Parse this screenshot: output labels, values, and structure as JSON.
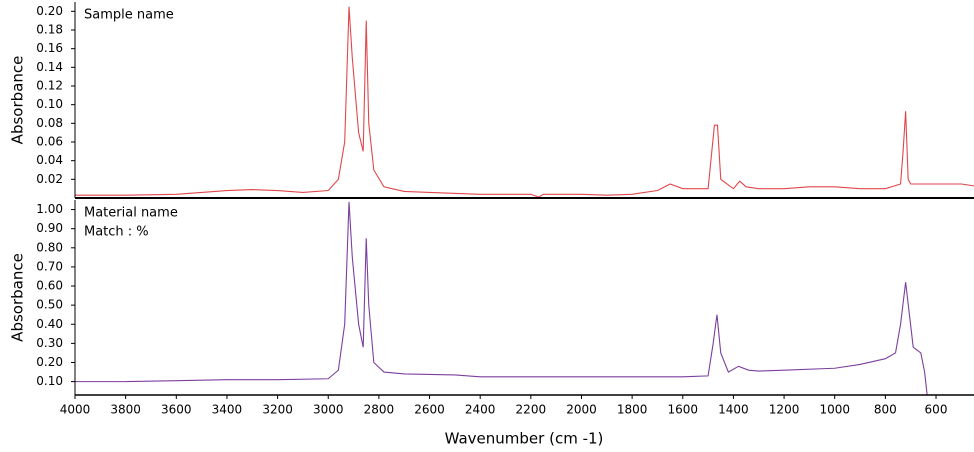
{
  "chart_data": [
    {
      "type": "line",
      "ylabel": "Absorbance",
      "annotations": [
        "Sample name"
      ],
      "color": "#e0474c",
      "xlim": [
        4000,
        450
      ],
      "ylim": [
        0,
        0.21
      ],
      "yticks": [
        0.02,
        0.04,
        0.06,
        0.08,
        {
          "value": 0.1,
          "label": "0.10"
        },
        0.12,
        0.14,
        0.16,
        0.18,
        {
          "value": 0.2,
          "label": "0.20"
        }
      ],
      "x": [
        4000,
        3800,
        3600,
        3400,
        3300,
        3200,
        3100,
        3000,
        2960,
        2935,
        2918,
        2905,
        2880,
        2862,
        2850,
        2840,
        2820,
        2780,
        2700,
        2600,
        2400,
        2200,
        2170,
        2150,
        2000,
        1900,
        1800,
        1700,
        1650,
        1600,
        1500,
        1475,
        1463,
        1450,
        1400,
        1375,
        1350,
        1300,
        1200,
        1100,
        1000,
        900,
        800,
        740,
        730,
        720,
        710,
        700,
        600,
        500,
        450
      ],
      "values": [
        0.003,
        0.003,
        0.004,
        0.008,
        0.009,
        0.008,
        0.006,
        0.008,
        0.02,
        0.06,
        0.205,
        0.15,
        0.07,
        0.05,
        0.19,
        0.08,
        0.03,
        0.012,
        0.007,
        0.006,
        0.004,
        0.004,
        0.001,
        0.004,
        0.004,
        0.003,
        0.004,
        0.008,
        0.015,
        0.01,
        0.01,
        0.078,
        0.078,
        0.02,
        0.01,
        0.018,
        0.012,
        0.01,
        0.01,
        0.012,
        0.012,
        0.01,
        0.01,
        0.015,
        0.05,
        0.093,
        0.02,
        0.015,
        0.015,
        0.015,
        0.013
      ]
    },
    {
      "type": "line",
      "ylabel": "Absorbance",
      "xlabel": "Wavenumber (cm -1)",
      "annotations": [
        "Material name",
        "Match : %"
      ],
      "color": "#7b3f9e",
      "xlim": [
        4000,
        450
      ],
      "ylim": [
        0.03,
        1.05
      ],
      "xticks": [
        4000,
        3800,
        3600,
        3400,
        3200,
        3000,
        2800,
        2600,
        2400,
        2200,
        2000,
        1800,
        1600,
        1400,
        1200,
        1000,
        800,
        600
      ],
      "yticks": [
        {
          "value": 0.1,
          "label": "0.10"
        },
        {
          "value": 0.2,
          "label": "0.20"
        },
        {
          "value": 0.3,
          "label": "0.30"
        },
        {
          "value": 0.4,
          "label": "0.40"
        },
        {
          "value": 0.5,
          "label": "0.50"
        },
        {
          "value": 0.6,
          "label": "0.60"
        },
        {
          "value": 0.7,
          "label": "0.70"
        },
        {
          "value": 0.8,
          "label": "0.80"
        },
        {
          "value": 0.9,
          "label": "0.90"
        },
        {
          "value": 1,
          "label": "1.00"
        }
      ],
      "x": [
        4000,
        3800,
        3600,
        3400,
        3200,
        3000,
        2960,
        2935,
        2918,
        2905,
        2880,
        2862,
        2850,
        2840,
        2820,
        2780,
        2700,
        2500,
        2400,
        2200,
        2000,
        1800,
        1600,
        1500,
        1480,
        1465,
        1450,
        1420,
        1380,
        1340,
        1300,
        1200,
        1000,
        900,
        800,
        760,
        740,
        720,
        705,
        690,
        660,
        645,
        635
      ],
      "values": [
        0.1,
        0.1,
        0.105,
        0.11,
        0.11,
        0.115,
        0.16,
        0.4,
        1.04,
        0.75,
        0.4,
        0.28,
        0.85,
        0.5,
        0.2,
        0.15,
        0.14,
        0.135,
        0.125,
        0.125,
        0.125,
        0.125,
        0.125,
        0.13,
        0.3,
        0.45,
        0.25,
        0.15,
        0.18,
        0.16,
        0.155,
        0.16,
        0.17,
        0.19,
        0.22,
        0.25,
        0.4,
        0.62,
        0.45,
        0.28,
        0.25,
        0.15,
        0.03
      ]
    }
  ]
}
